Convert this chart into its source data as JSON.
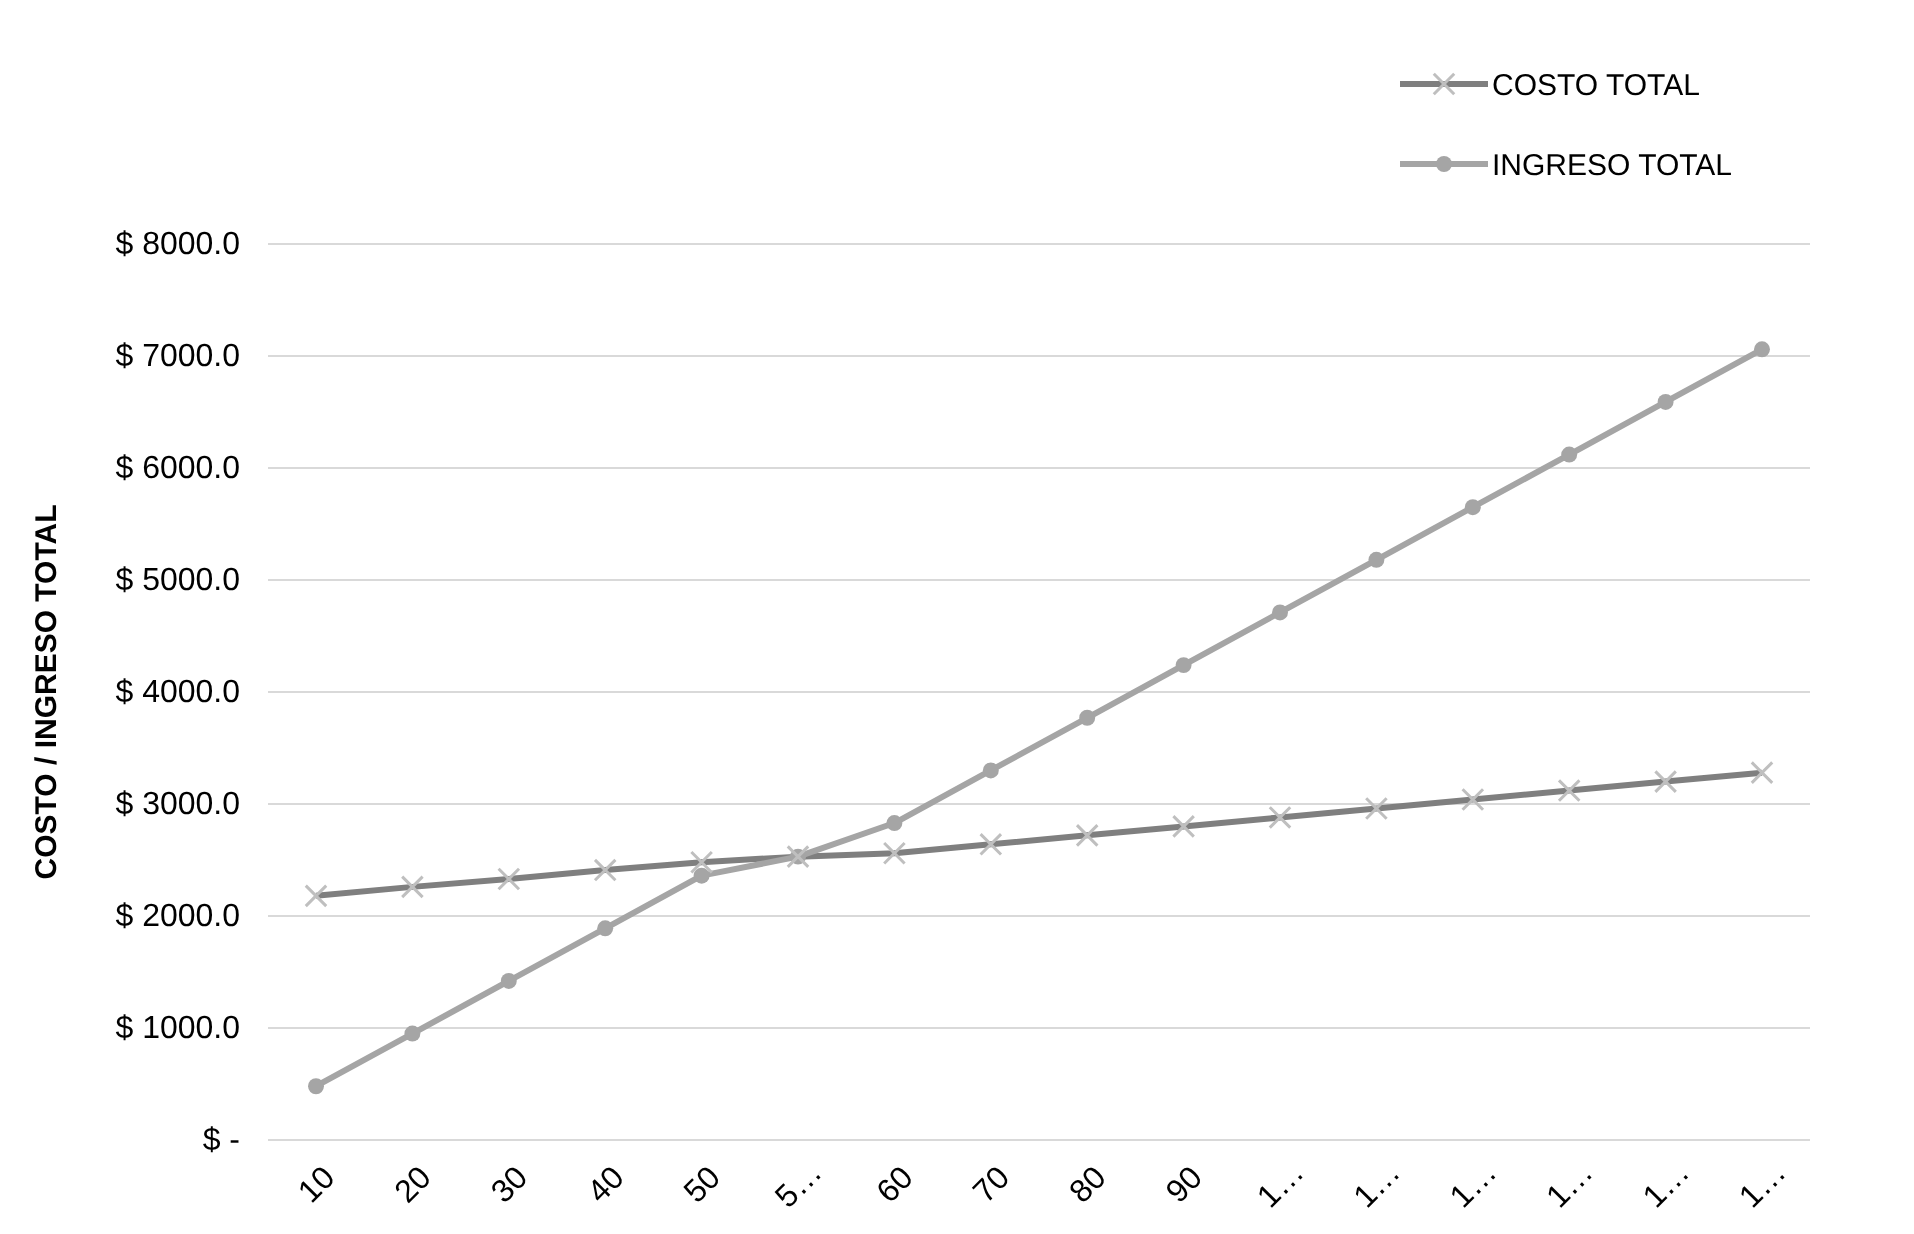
{
  "chart_data": {
    "type": "line",
    "ylabel": "COSTO / INGRESO TOTAL",
    "categories": [
      "10",
      "20",
      "30",
      "40",
      "50",
      "5…",
      "60",
      "70",
      "80",
      "90",
      "1…",
      "1…",
      "1…",
      "1…",
      "1…",
      "1…"
    ],
    "series": [
      {
        "name": "COSTO TOTAL",
        "color": "#7f7f7f",
        "marker": "cross",
        "values": [
          2180,
          2260,
          2330,
          2410,
          2480,
          2530,
          2560,
          2640,
          2720,
          2800,
          2880,
          2960,
          3040,
          3120,
          3200,
          3280
        ]
      },
      {
        "name": "INGRESO TOTAL",
        "color": "#a5a5a5",
        "marker": "circle",
        "values": [
          480,
          950,
          1420,
          1890,
          2360,
          2530,
          2830,
          3300,
          3770,
          4240,
          4710,
          5180,
          5650,
          6120,
          6590,
          7060
        ]
      }
    ],
    "ylim": [
      0,
      8000
    ],
    "yticks": [
      {
        "value": 0,
        "label": "$ -"
      },
      {
        "value": 1000,
        "label": "$ 1000.0"
      },
      {
        "value": 2000,
        "label": "$ 2000.0"
      },
      {
        "value": 3000,
        "label": "$ 3000.0"
      },
      {
        "value": 4000,
        "label": "$ 4000.0"
      },
      {
        "value": 5000,
        "label": "$ 5000.0"
      },
      {
        "value": 6000,
        "label": "$ 6000.0"
      },
      {
        "value": 7000,
        "label": "$ 7000.0"
      },
      {
        "value": 8000,
        "label": "$ 8000.0"
      }
    ],
    "grid": "y",
    "legend": "top right",
    "line_style": "solid"
  }
}
